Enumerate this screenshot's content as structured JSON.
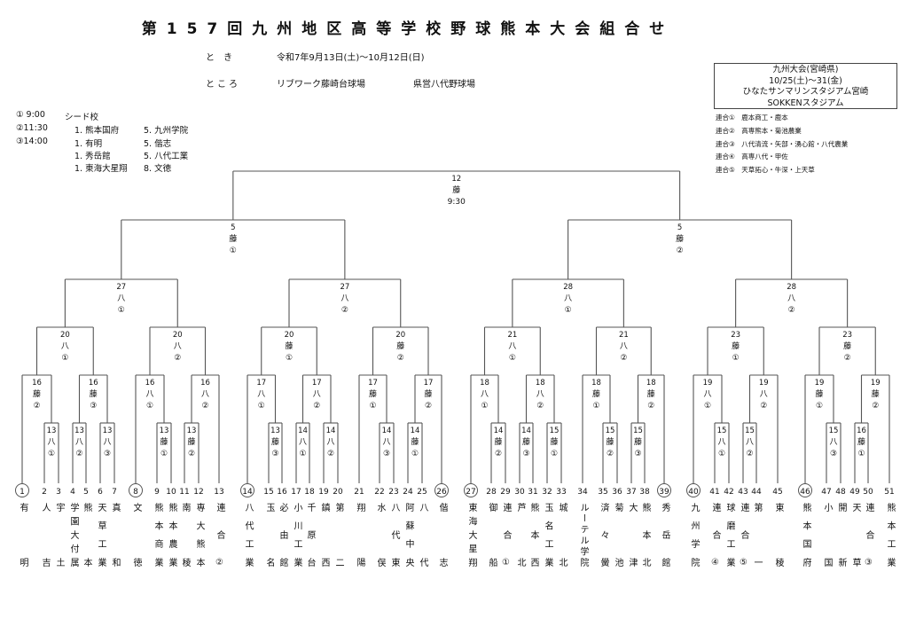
{
  "header": {
    "title": "第157回九州地区高等学校野球熊本大会組合せ",
    "date_label": "と　き",
    "date_value": "令和7年9月13日(土)～10月12日(日)",
    "place_label": "ところ",
    "venue_1": "リブワーク藤崎台球場",
    "venue_2": "県営八代野球場"
  },
  "times": [
    "① 9:00",
    "②11:30",
    "③14:00"
  ],
  "seeds": {
    "heading": "シード校",
    "rows": [
      [
        "1. 熊本国府",
        "5. 九州学院"
      ],
      [
        "1. 有明",
        "5. 偕志"
      ],
      [
        "1. 秀岳館",
        "5. 八代工業"
      ],
      [
        "1. 東海大星翔",
        "8. 文徳"
      ]
    ]
  },
  "kyushu": {
    "line1": "九州大会(宮崎県)",
    "line2": "10/25(土)～31(金)",
    "line3": "ひなたサンマリンスタジアム宮崎",
    "line4": "SOKKENスタジアム"
  },
  "rengo": [
    "連合①　鹿本商工・鹿本",
    "連合②　高専熊本・菊池農業",
    "連合③　八代清流・矢部・湧心館・八代農業",
    "連合④　高専八代・甲佐",
    "連合⑤　天草拓心・牛深・上天草"
  ],
  "teams": [
    {
      "no": "1",
      "name": "有明",
      "seed": true
    },
    {
      "no": "2",
      "name": "人吉"
    },
    {
      "no": "3",
      "name": "宇土"
    },
    {
      "no": "4",
      "name": "学園大付属"
    },
    {
      "no": "5",
      "name": "熊本"
    },
    {
      "no": "6",
      "name": "天草工業"
    },
    {
      "no": "7",
      "name": "真和"
    },
    {
      "no": "8",
      "name": "文徳",
      "seed": true
    },
    {
      "no": "9",
      "name": "熊本商業"
    },
    {
      "no": "10",
      "name": "熊本農業"
    },
    {
      "no": "11",
      "name": "南稜"
    },
    {
      "no": "12",
      "name": "専大熊本"
    },
    {
      "no": "13",
      "name": "連合②"
    },
    {
      "no": "14",
      "name": "八代工業",
      "seed": true
    },
    {
      "no": "15",
      "name": "玉名"
    },
    {
      "no": "16",
      "name": "必由館"
    },
    {
      "no": "17",
      "name": "小川工業"
    },
    {
      "no": "18",
      "name": "千原台"
    },
    {
      "no": "19",
      "name": "鎮西"
    },
    {
      "no": "20",
      "name": "第二"
    },
    {
      "no": "21",
      "name": "翔陽"
    },
    {
      "no": "22",
      "name": "水俣"
    },
    {
      "no": "23",
      "name": "八代東"
    },
    {
      "no": "24",
      "name": "阿蘇中央"
    },
    {
      "no": "25",
      "name": "八代"
    },
    {
      "no": "26",
      "name": "偕志",
      "seed": true
    },
    {
      "no": "27",
      "name": "東海大星翔",
      "seed": true
    },
    {
      "no": "28",
      "name": "御船"
    },
    {
      "no": "29",
      "name": "連合①"
    },
    {
      "no": "30",
      "name": "芦北"
    },
    {
      "no": "31",
      "name": "熊本西"
    },
    {
      "no": "32",
      "name": "玉名工業"
    },
    {
      "no": "33",
      "name": "城北"
    },
    {
      "no": "34",
      "name": "ルーテル学院"
    },
    {
      "no": "35",
      "name": "済々黌"
    },
    {
      "no": "36",
      "name": "菊池"
    },
    {
      "no": "37",
      "name": "大津"
    },
    {
      "no": "38",
      "name": "熊本北"
    },
    {
      "no": "39",
      "name": "秀岳館",
      "seed": true
    },
    {
      "no": "40",
      "name": "九州学院",
      "seed": true
    },
    {
      "no": "41",
      "name": "連合④"
    },
    {
      "no": "42",
      "name": "球磨工業"
    },
    {
      "no": "43",
      "name": "連合⑤"
    },
    {
      "no": "44",
      "name": "第一"
    },
    {
      "no": "45",
      "name": "東稜"
    },
    {
      "no": "46",
      "name": "熊本国府",
      "seed": true
    },
    {
      "no": "47",
      "name": "小国"
    },
    {
      "no": "48",
      "name": "開新"
    },
    {
      "no": "49",
      "name": "天草"
    },
    {
      "no": "50",
      "name": "連合③"
    },
    {
      "no": "51",
      "name": "熊本工業"
    }
  ],
  "bracket": {
    "day": "12",
    "venue": "藤",
    "slot": "9:30",
    "c": [
      {
        "day": "5",
        "venue": "藤",
        "slot": "①",
        "c": [
          {
            "day": "27",
            "venue": "八",
            "slot": "①",
            "c": [
              {
                "day": "20",
                "venue": "八",
                "slot": "①",
                "c": [
                  {
                    "day": "16",
                    "venue": "藤",
                    "slot": "②",
                    "c": [
                      1,
                      {
                        "day": "13",
                        "venue": "八",
                        "slot": "①",
                        "c": [
                          2,
                          3
                        ]
                      }
                    ]
                  },
                  {
                    "day": "16",
                    "venue": "藤",
                    "slot": "③",
                    "c": [
                      {
                        "day": "13",
                        "venue": "八",
                        "slot": "②",
                        "c": [
                          4,
                          5
                        ]
                      },
                      {
                        "day": "13",
                        "venue": "八",
                        "slot": "③",
                        "c": [
                          6,
                          7
                        ]
                      }
                    ]
                  }
                ]
              },
              {
                "day": "20",
                "venue": "八",
                "slot": "②",
                "c": [
                  {
                    "day": "16",
                    "venue": "八",
                    "slot": "①",
                    "c": [
                      8,
                      {
                        "day": "13",
                        "venue": "藤",
                        "slot": "①",
                        "c": [
                          9,
                          10
                        ]
                      }
                    ]
                  },
                  {
                    "day": "16",
                    "venue": "八",
                    "slot": "②",
                    "c": [
                      {
                        "day": "13",
                        "venue": "藤",
                        "slot": "②",
                        "c": [
                          11,
                          12
                        ]
                      },
                      13
                    ]
                  }
                ]
              }
            ]
          },
          {
            "day": "27",
            "venue": "八",
            "slot": "②",
            "c": [
              {
                "day": "20",
                "venue": "藤",
                "slot": "①",
                "c": [
                  {
                    "day": "17",
                    "venue": "八",
                    "slot": "①",
                    "c": [
                      14,
                      {
                        "day": "13",
                        "venue": "藤",
                        "slot": "③",
                        "c": [
                          15,
                          16
                        ]
                      }
                    ]
                  },
                  {
                    "day": "17",
                    "venue": "八",
                    "slot": "②",
                    "c": [
                      {
                        "day": "14",
                        "venue": "八",
                        "slot": "①",
                        "c": [
                          17,
                          18
                        ]
                      },
                      {
                        "day": "14",
                        "venue": "八",
                        "slot": "②",
                        "c": [
                          19,
                          20
                        ]
                      }
                    ]
                  }
                ]
              },
              {
                "day": "20",
                "venue": "藤",
                "slot": "②",
                "c": [
                  {
                    "day": "17",
                    "venue": "藤",
                    "slot": "①",
                    "c": [
                      21,
                      {
                        "day": "14",
                        "venue": "八",
                        "slot": "③",
                        "c": [
                          22,
                          23
                        ]
                      }
                    ]
                  },
                  {
                    "day": "17",
                    "venue": "藤",
                    "slot": "②",
                    "c": [
                      {
                        "day": "14",
                        "venue": "藤",
                        "slot": "①",
                        "c": [
                          24,
                          25
                        ]
                      },
                      26
                    ]
                  }
                ]
              }
            ]
          }
        ]
      },
      {
        "day": "5",
        "venue": "藤",
        "slot": "②",
        "c": [
          {
            "day": "28",
            "venue": "八",
            "slot": "①",
            "c": [
              {
                "day": "21",
                "venue": "八",
                "slot": "①",
                "c": [
                  {
                    "day": "18",
                    "venue": "八",
                    "slot": "①",
                    "c": [
                      27,
                      {
                        "day": "14",
                        "venue": "藤",
                        "slot": "②",
                        "c": [
                          28,
                          29
                        ]
                      }
                    ]
                  },
                  {
                    "day": "18",
                    "venue": "八",
                    "slot": "②",
                    "c": [
                      {
                        "day": "14",
                        "venue": "藤",
                        "slot": "③",
                        "c": [
                          30,
                          31
                        ]
                      },
                      {
                        "day": "15",
                        "venue": "藤",
                        "slot": "①",
                        "c": [
                          32,
                          33
                        ]
                      }
                    ]
                  }
                ]
              },
              {
                "day": "21",
                "venue": "八",
                "slot": "②",
                "c": [
                  {
                    "day": "18",
                    "venue": "藤",
                    "slot": "①",
                    "c": [
                      34,
                      {
                        "day": "15",
                        "venue": "藤",
                        "slot": "②",
                        "c": [
                          35,
                          36
                        ]
                      }
                    ]
                  },
                  {
                    "day": "18",
                    "venue": "藤",
                    "slot": "②",
                    "c": [
                      {
                        "day": "15",
                        "venue": "藤",
                        "slot": "③",
                        "c": [
                          37,
                          38
                        ]
                      },
                      39
                    ]
                  }
                ]
              }
            ]
          },
          {
            "day": "28",
            "venue": "八",
            "slot": "②",
            "c": [
              {
                "day": "23",
                "venue": "藤",
                "slot": "①",
                "c": [
                  {
                    "day": "19",
                    "venue": "八",
                    "slot": "①",
                    "c": [
                      40,
                      {
                        "day": "15",
                        "venue": "八",
                        "slot": "①",
                        "c": [
                          41,
                          42
                        ]
                      }
                    ]
                  },
                  {
                    "day": "19",
                    "venue": "八",
                    "slot": "②",
                    "c": [
                      {
                        "day": "15",
                        "venue": "八",
                        "slot": "②",
                        "c": [
                          43,
                          44
                        ]
                      },
                      45
                    ]
                  }
                ]
              },
              {
                "day": "23",
                "venue": "藤",
                "slot": "②",
                "c": [
                  {
                    "day": "19",
                    "venue": "藤",
                    "slot": "①",
                    "c": [
                      46,
                      {
                        "day": "15",
                        "venue": "八",
                        "slot": "③",
                        "c": [
                          47,
                          48
                        ]
                      }
                    ]
                  },
                  {
                    "day": "19",
                    "venue": "藤",
                    "slot": "②",
                    "c": [
                      {
                        "day": "16",
                        "venue": "藤",
                        "slot": "①",
                        "c": [
                          49,
                          50
                        ]
                      },
                      51
                    ]
                  }
                ]
              }
            ]
          }
        ]
      }
    ]
  }
}
